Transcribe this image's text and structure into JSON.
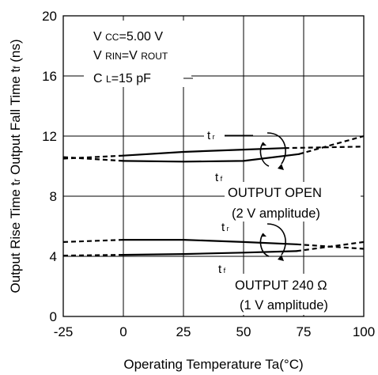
{
  "chart_data": {
    "type": "line",
    "title": "",
    "xlabel": "Operating Temperature Ta(°C)",
    "ylabel_parts": {
      "a": "Output Rise Time t",
      "a_sub": "r",
      "b": " Output Fall Time t",
      "b_sub": "f",
      "c": " (ns)"
    },
    "xlim": [
      -25,
      100
    ],
    "ylim": [
      0,
      20
    ],
    "x_ticks": [
      -25,
      0,
      25,
      50,
      75,
      100
    ],
    "y_ticks": [
      0,
      4,
      8,
      12,
      16,
      20
    ],
    "x_tick_labels": [
      "-25",
      "0",
      "25",
      "50",
      "75",
      "100"
    ],
    "y_tick_labels": [
      "0",
      "4",
      "8",
      "12",
      "16",
      "20"
    ],
    "grid": true,
    "conditions": [
      {
        "pre": "V ",
        "sub": "CC",
        "post": "=5.00 V"
      },
      {
        "pre": "V ",
        "sub": "RIN",
        "post": "=V ",
        "sub2": "ROUT"
      },
      {
        "pre": "C ",
        "sub": "L",
        "post": "=15 pF"
      }
    ],
    "annotations": {
      "open_label": "OUTPUT OPEN",
      "open_sub": "(2 V amplitude)",
      "load_label": "OUTPUT 240 Ω",
      "load_sub": "(1 V amplitude)",
      "tr_text": "t",
      "tr_sub": "r",
      "tf_text": "t",
      "tf_sub": "f"
    },
    "series": [
      {
        "group": "OUTPUT OPEN",
        "kind": "tr",
        "style": "solid",
        "x": [
          0,
          25,
          50,
          67
        ],
        "y": [
          10.7,
          10.95,
          11.1,
          11.2
        ]
      },
      {
        "group": "OUTPUT OPEN",
        "kind": "tr",
        "style": "dashed",
        "x": [
          -25,
          0
        ],
        "y": [
          10.5,
          10.7
        ]
      },
      {
        "group": "OUTPUT OPEN",
        "kind": "tr",
        "style": "dashed",
        "x": [
          67,
          100
        ],
        "y": [
          11.2,
          11.3
        ]
      },
      {
        "group": "OUTPUT OPEN",
        "kind": "tf",
        "style": "solid",
        "x": [
          0,
          25,
          50,
          73
        ],
        "y": [
          10.35,
          10.3,
          10.35,
          10.8
        ]
      },
      {
        "group": "OUTPUT OPEN",
        "kind": "tf",
        "style": "dashed",
        "x": [
          -25,
          0
        ],
        "y": [
          10.6,
          10.35
        ]
      },
      {
        "group": "OUTPUT OPEN",
        "kind": "tf",
        "style": "dashed",
        "x": [
          73,
          100
        ],
        "y": [
          10.8,
          12.0
        ]
      },
      {
        "group": "OUTPUT 240 Ω",
        "kind": "tr",
        "style": "solid",
        "x": [
          0,
          25,
          50,
          72
        ],
        "y": [
          5.1,
          5.1,
          4.95,
          4.8
        ]
      },
      {
        "group": "OUTPUT 240 Ω",
        "kind": "tr",
        "style": "dashed",
        "x": [
          -25,
          0
        ],
        "y": [
          4.95,
          5.1
        ]
      },
      {
        "group": "OUTPUT 240 Ω",
        "kind": "tr",
        "style": "dashed",
        "x": [
          72,
          100
        ],
        "y": [
          4.8,
          4.5
        ]
      },
      {
        "group": "OUTPUT 240 Ω",
        "kind": "tf",
        "style": "solid",
        "x": [
          0,
          25,
          50,
          72
        ],
        "y": [
          4.1,
          4.15,
          4.25,
          4.35
        ]
      },
      {
        "group": "OUTPUT 240 Ω",
        "kind": "tf",
        "style": "dashed",
        "x": [
          -25,
          0
        ],
        "y": [
          4.05,
          4.1
        ]
      },
      {
        "group": "OUTPUT 240 Ω",
        "kind": "tf",
        "style": "dashed",
        "x": [
          72,
          100
        ],
        "y": [
          4.35,
          4.95
        ]
      }
    ]
  }
}
